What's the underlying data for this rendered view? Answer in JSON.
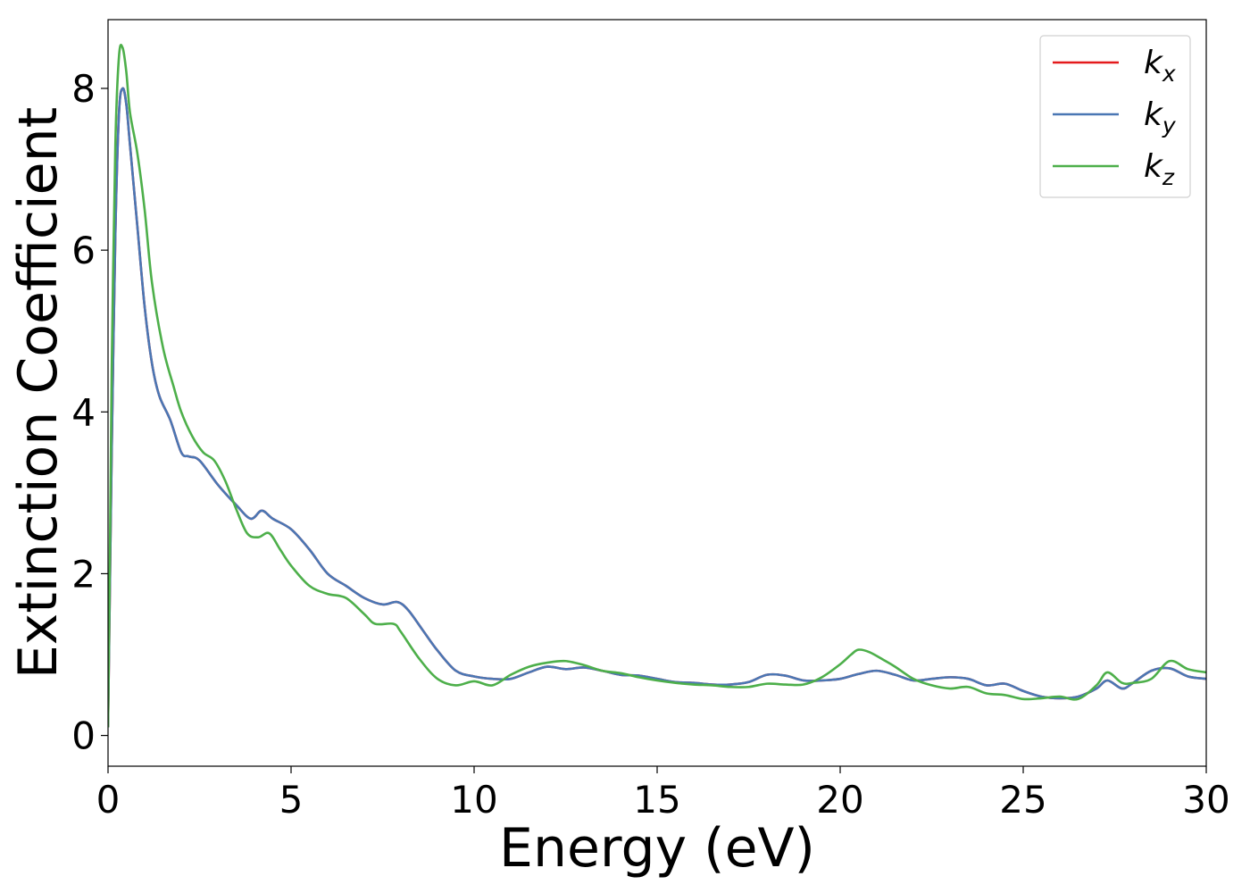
{
  "chart_data": {
    "type": "line",
    "xlabel": "Energy (eV)",
    "ylabel": "Extinction Coefficient",
    "xlim": [
      0,
      30
    ],
    "ylim": [
      -0.38,
      8.85
    ],
    "xticks": [
      0,
      5,
      10,
      15,
      20,
      25,
      30
    ],
    "yticks": [
      0,
      2,
      4,
      6,
      8
    ],
    "grid": false,
    "legend": "top-right",
    "series": [
      {
        "name": "k",
        "subscript": "x",
        "color": "#e41a1c",
        "x": [
          0,
          0.05,
          0.1,
          0.2,
          0.3,
          0.4,
          0.5,
          0.6,
          0.8,
          1.0,
          1.2,
          1.4,
          1.7,
          2.0,
          2.2,
          2.5,
          3.0,
          3.5,
          3.9,
          4.2,
          4.5,
          5.0,
          5.5,
          6.0,
          6.5,
          7.0,
          7.5,
          7.9,
          8.2,
          8.6,
          9.0,
          9.5,
          10.0,
          10.5,
          11.0,
          11.5,
          12.0,
          12.5,
          13.0,
          13.5,
          14.0,
          14.5,
          15.0,
          15.5,
          16.0,
          16.5,
          17.0,
          17.5,
          18.0,
          18.5,
          19.0,
          19.5,
          20.0,
          20.5,
          21.0,
          21.5,
          22.0,
          22.5,
          23.0,
          23.5,
          24.0,
          24.5,
          25.0,
          25.5,
          26.0,
          26.5,
          27.0,
          27.3,
          27.7,
          28.0,
          28.5,
          29.0,
          29.5,
          30.0
        ],
        "y": [
          0.1,
          1.8,
          3.5,
          6.2,
          7.7,
          8.0,
          7.8,
          7.3,
          6.3,
          5.3,
          4.6,
          4.2,
          3.9,
          3.5,
          3.45,
          3.4,
          3.1,
          2.85,
          2.68,
          2.78,
          2.68,
          2.55,
          2.3,
          2.0,
          1.85,
          1.7,
          1.62,
          1.65,
          1.55,
          1.3,
          1.05,
          0.8,
          0.73,
          0.7,
          0.7,
          0.78,
          0.85,
          0.82,
          0.84,
          0.8,
          0.75,
          0.74,
          0.7,
          0.66,
          0.65,
          0.63,
          0.63,
          0.66,
          0.75,
          0.74,
          0.68,
          0.68,
          0.7,
          0.76,
          0.8,
          0.75,
          0.68,
          0.7,
          0.72,
          0.7,
          0.62,
          0.64,
          0.55,
          0.48,
          0.46,
          0.48,
          0.58,
          0.68,
          0.58,
          0.65,
          0.8,
          0.83,
          0.73,
          0.7
        ]
      },
      {
        "name": "k",
        "subscript": "y",
        "color": "#4a77b4",
        "x": [
          0,
          0.05,
          0.1,
          0.2,
          0.3,
          0.4,
          0.5,
          0.6,
          0.8,
          1.0,
          1.2,
          1.4,
          1.7,
          2.0,
          2.2,
          2.5,
          3.0,
          3.5,
          3.9,
          4.2,
          4.5,
          5.0,
          5.5,
          6.0,
          6.5,
          7.0,
          7.5,
          7.9,
          8.2,
          8.6,
          9.0,
          9.5,
          10.0,
          10.5,
          11.0,
          11.5,
          12.0,
          12.5,
          13.0,
          13.5,
          14.0,
          14.5,
          15.0,
          15.5,
          16.0,
          16.5,
          17.0,
          17.5,
          18.0,
          18.5,
          19.0,
          19.5,
          20.0,
          20.5,
          21.0,
          21.5,
          22.0,
          22.5,
          23.0,
          23.5,
          24.0,
          24.5,
          25.0,
          25.5,
          26.0,
          26.5,
          27.0,
          27.3,
          27.7,
          28.0,
          28.5,
          29.0,
          29.5,
          30.0
        ],
        "y": [
          0.1,
          1.8,
          3.5,
          6.2,
          7.7,
          8.0,
          7.8,
          7.3,
          6.3,
          5.3,
          4.6,
          4.2,
          3.9,
          3.5,
          3.45,
          3.4,
          3.1,
          2.85,
          2.68,
          2.78,
          2.68,
          2.55,
          2.3,
          2.0,
          1.85,
          1.7,
          1.62,
          1.65,
          1.55,
          1.3,
          1.05,
          0.8,
          0.73,
          0.7,
          0.7,
          0.78,
          0.85,
          0.82,
          0.84,
          0.8,
          0.75,
          0.74,
          0.7,
          0.66,
          0.65,
          0.63,
          0.63,
          0.66,
          0.75,
          0.74,
          0.68,
          0.68,
          0.7,
          0.76,
          0.8,
          0.75,
          0.68,
          0.7,
          0.72,
          0.7,
          0.62,
          0.64,
          0.55,
          0.48,
          0.46,
          0.48,
          0.58,
          0.68,
          0.58,
          0.65,
          0.8,
          0.83,
          0.73,
          0.7
        ]
      },
      {
        "name": "k",
        "subscript": "z",
        "color": "#4daf4a",
        "x": [
          0,
          0.05,
          0.1,
          0.2,
          0.3,
          0.4,
          0.5,
          0.6,
          0.8,
          1.0,
          1.2,
          1.5,
          1.8,
          2.0,
          2.3,
          2.6,
          2.9,
          3.2,
          3.5,
          3.8,
          4.1,
          4.4,
          4.7,
          5.0,
          5.5,
          6.0,
          6.5,
          7.0,
          7.3,
          7.8,
          8.0,
          8.5,
          9.0,
          9.5,
          10.0,
          10.5,
          11.0,
          11.5,
          12.0,
          12.5,
          13.0,
          13.5,
          14.0,
          14.5,
          15.0,
          15.5,
          16.0,
          16.5,
          17.0,
          17.5,
          18.0,
          18.5,
          19.0,
          19.5,
          20.0,
          20.3,
          20.5,
          20.8,
          21.2,
          21.5,
          22.0,
          22.5,
          23.0,
          23.5,
          24.0,
          24.5,
          25.0,
          25.5,
          26.0,
          26.5,
          27.0,
          27.3,
          27.7,
          28.0,
          28.5,
          29.0,
          29.5,
          30.0
        ],
        "y": [
          0.1,
          2.2,
          4.5,
          7.3,
          8.4,
          8.5,
          8.2,
          7.7,
          7.2,
          6.5,
          5.6,
          4.8,
          4.3,
          4.0,
          3.7,
          3.5,
          3.4,
          3.15,
          2.8,
          2.5,
          2.45,
          2.5,
          2.3,
          2.1,
          1.85,
          1.75,
          1.7,
          1.5,
          1.38,
          1.38,
          1.28,
          0.95,
          0.7,
          0.62,
          0.67,
          0.62,
          0.75,
          0.85,
          0.9,
          0.92,
          0.87,
          0.8,
          0.77,
          0.72,
          0.68,
          0.65,
          0.63,
          0.62,
          0.6,
          0.6,
          0.64,
          0.63,
          0.63,
          0.72,
          0.88,
          1.0,
          1.06,
          1.03,
          0.93,
          0.85,
          0.7,
          0.62,
          0.58,
          0.6,
          0.52,
          0.5,
          0.45,
          0.46,
          0.48,
          0.45,
          0.62,
          0.78,
          0.65,
          0.65,
          0.7,
          0.92,
          0.82,
          0.78
        ]
      }
    ]
  }
}
